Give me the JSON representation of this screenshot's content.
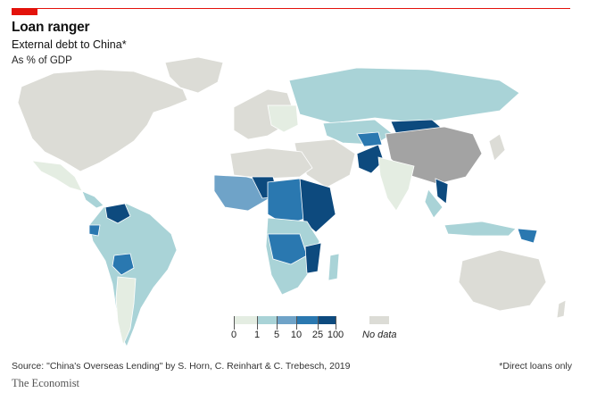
{
  "header": {
    "title": "Loan ranger",
    "subtitle": "External debt to China*",
    "unit": "As % of GDP"
  },
  "legend": {
    "bins": [
      {
        "from": "0",
        "color": "#e4ede2"
      },
      {
        "from": "1",
        "color": "#a9d3d7"
      },
      {
        "from": "5",
        "color": "#6fa3c8"
      },
      {
        "from": "10",
        "color": "#2a78b0"
      },
      {
        "from": "25",
        "color": "#0d4a7e"
      }
    ],
    "end_label": "100",
    "no_data_label": "No data",
    "no_data_color": "#dcdcd6",
    "china_color": "#a3a3a3"
  },
  "footer": {
    "source": "Source: \"China's Overseas Lending\" by S. Horn, C. Reinhart & C. Trebesch, 2019",
    "footnote": "*Direct loans only",
    "brand": "The Economist"
  }
}
